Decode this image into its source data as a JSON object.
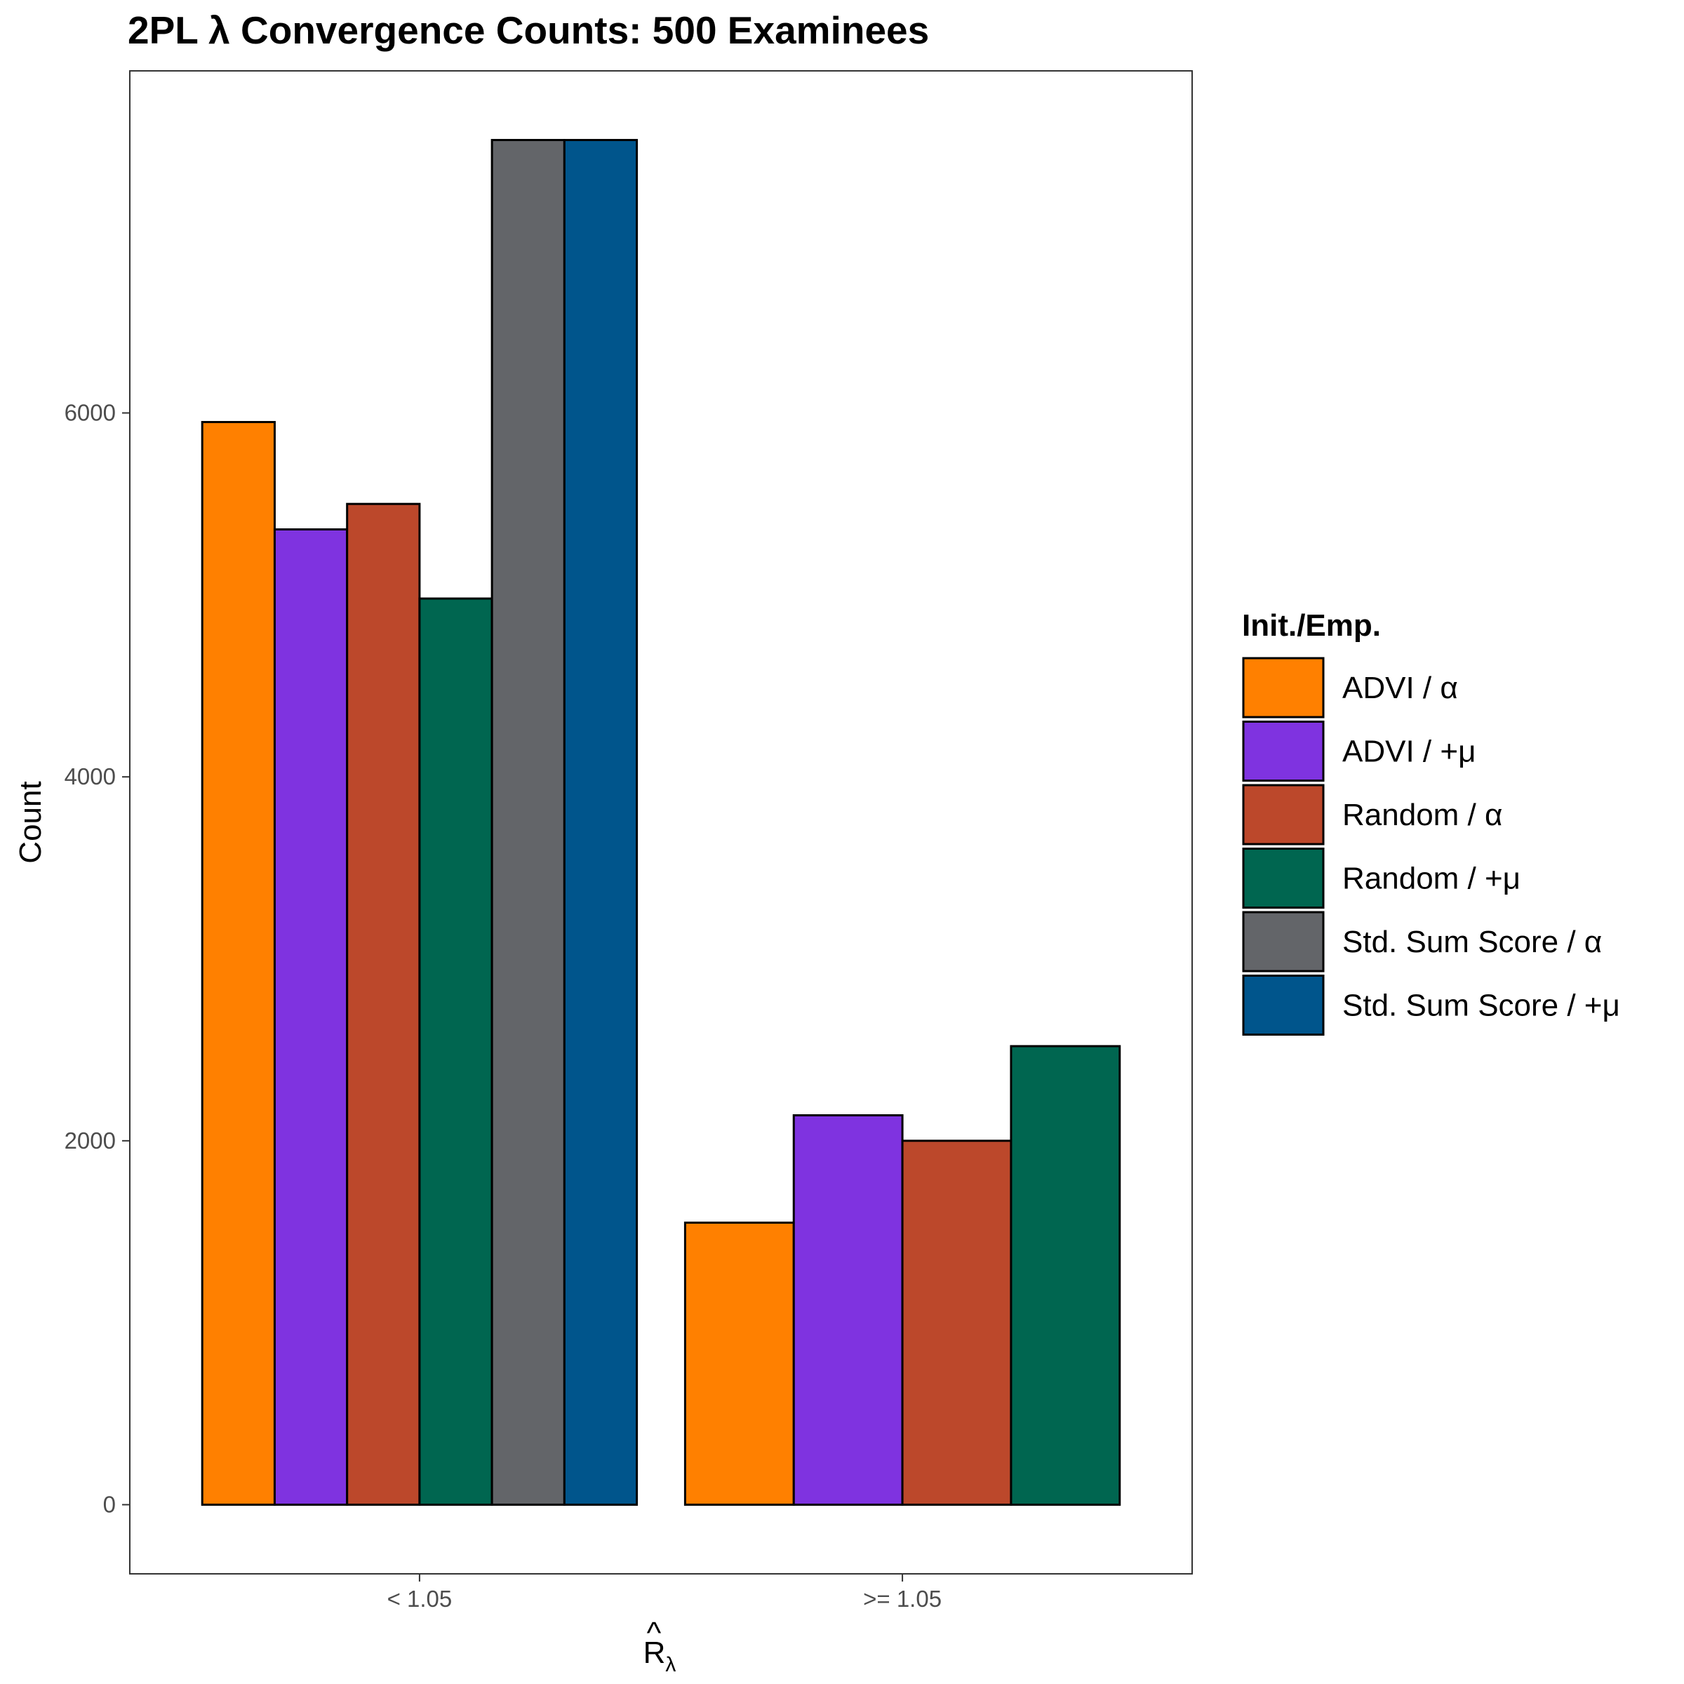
{
  "chart_data": {
    "type": "bar",
    "title": "2PL λ Convergence Counts: 500 Examinees",
    "xlabel": "R",
    "xlabel_hat": "^",
    "xlabel_subscript": "λ",
    "ylabel": "Count",
    "categories": [
      "< 1.05",
      ">= 1.05"
    ],
    "yticks": [
      0,
      2000,
      4000,
      6000
    ],
    "ylim": [
      -380,
      7880
    ],
    "grid": false,
    "legend_position": "right",
    "legend_title": "Init./Emp.",
    "series": [
      {
        "name": "ADVI / α",
        "color": "#FF8000",
        "values": [
          5950,
          1550
        ]
      },
      {
        "name": "ADVI / +μ",
        "color": "#7F33E0",
        "values": [
          5360,
          2140
        ]
      },
      {
        "name": "Random / α",
        "color": "#BC482B",
        "values": [
          5500,
          2000
        ]
      },
      {
        "name": "Random / +μ",
        "color": "#006650",
        "values": [
          4980,
          2520
        ]
      },
      {
        "name": "Std. Sum Score / α",
        "color": "#636569",
        "values": [
          7500,
          null
        ]
      },
      {
        "name": "Std. Sum Score / +μ",
        "color": "#00558C",
        "values": [
          7500,
          null
        ]
      }
    ]
  }
}
